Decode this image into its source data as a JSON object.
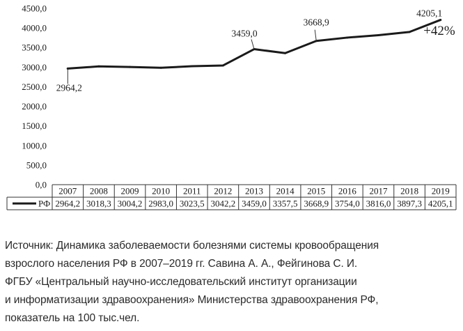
{
  "chart_data": {
    "type": "line",
    "categories": [
      "2007",
      "2008",
      "2009",
      "2010",
      "2011",
      "2012",
      "2013",
      "2014",
      "2015",
      "2016",
      "2017",
      "2018",
      "2019"
    ],
    "series": [
      {
        "name": "РФ",
        "values": [
          2964.2,
          3018.3,
          3004.2,
          2983.0,
          3023.5,
          3042.2,
          3459.0,
          3357.5,
          3668.9,
          3754.0,
          3816.0,
          3897.3,
          4205.1
        ],
        "table_values": [
          "2964,2",
          "3018,3",
          "3004,2",
          "2983,0",
          "3023,5",
          "3042,2",
          "3459,0",
          "3357,5",
          "3668,9",
          "3754,0",
          "3816,0",
          "3897,3",
          "4205,1"
        ],
        "color": "#1a1a1a"
      }
    ],
    "ylim": [
      0,
      4500
    ],
    "yticks": [
      0,
      500,
      1000,
      1500,
      2000,
      2500,
      3000,
      3500,
      4000,
      4500
    ],
    "ytick_labels": [
      "0,0",
      "500,0",
      "1000,0",
      "1500,0",
      "2000,0",
      "2500,0",
      "3000,0",
      "3500,0",
      "4000,0",
      "4500,0"
    ],
    "point_labels": [
      {
        "index": 0,
        "text": "2964,2"
      },
      {
        "index": 6,
        "text": "3459,0"
      },
      {
        "index": 8,
        "text": "3668,9"
      },
      {
        "index": 12,
        "text": "4205,1"
      }
    ],
    "annotation": "+42%",
    "grid": false,
    "legend": "data-table-row"
  },
  "caption": {
    "lines": [
      "Источник: Динамика заболеваемости болезнями системы кровообращения",
      "взрослого населения РФ в 2007–2019 гг. Савина А. А., Фейгинова С. И.",
      "ФГБУ «Центральный научно-исследовательский институт организации",
      "и информатизации здравоохранения» Министерства здравоохранения РФ,",
      "показатель на 100 тыс.чел."
    ]
  }
}
